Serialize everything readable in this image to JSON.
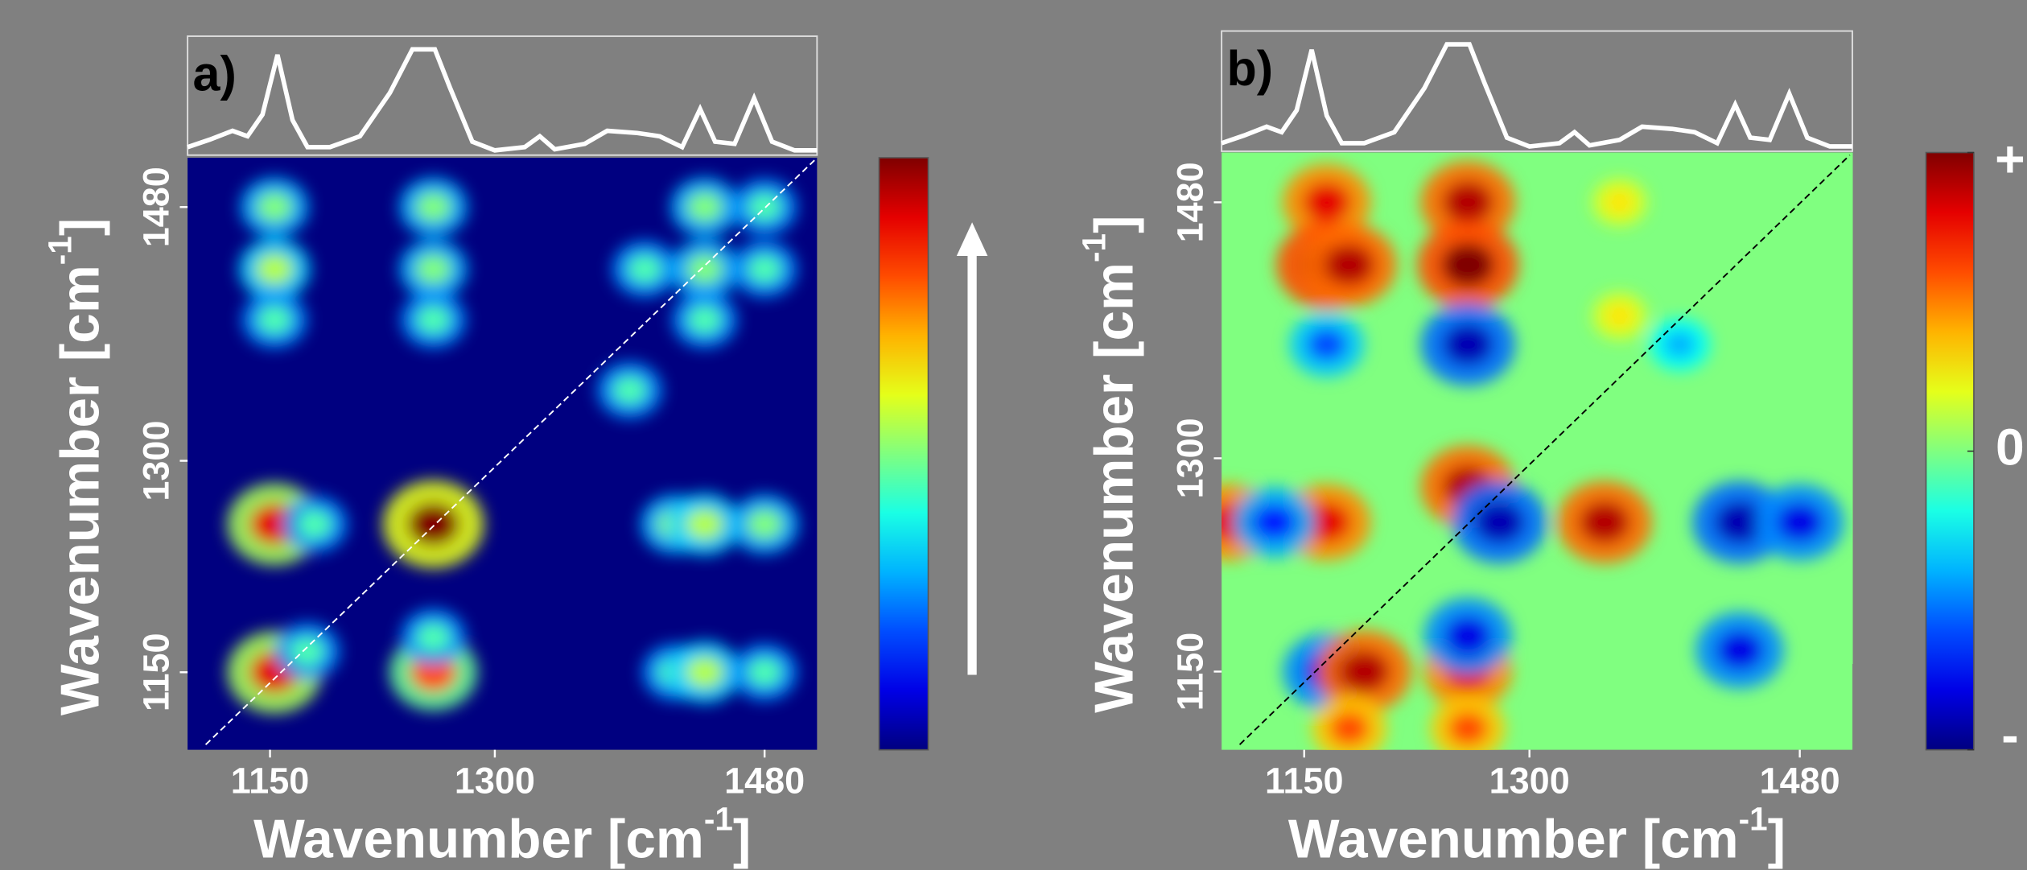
{
  "chart_data": [
    {
      "type": "heatmap",
      "panel_label": "a)",
      "x_label": {
        "text": "Wavenumber [cm",
        "sup": "-1",
        "end": "]"
      },
      "y_label": {
        "text": "Wavenumber [cm",
        "sup": "-1",
        "end": "]"
      },
      "xlim": [
        1095,
        1515
      ],
      "ylim": [
        1095,
        1515
      ],
      "xticks": [
        1150,
        1300,
        1480
      ],
      "yticks": [
        1150,
        1300,
        1480
      ],
      "clim": [
        0,
        1
      ],
      "colormap": "jet",
      "x": [
        1153,
        1259,
        1440,
        1480,
        1153,
        1259,
        1400,
        1440,
        1480,
        1153,
        1259,
        1440,
        1390,
        1153,
        1180,
        1259,
        1420,
        1440,
        1480,
        1153,
        1175,
        1259,
        1259,
        1420,
        1440,
        1480
      ],
      "y": [
        1480,
        1480,
        1480,
        1480,
        1436,
        1436,
        1436,
        1436,
        1436,
        1400,
        1400,
        1400,
        1350,
        1255,
        1255,
        1255,
        1255,
        1255,
        1255,
        1150,
        1165,
        1150,
        1175,
        1150,
        1150,
        1150
      ],
      "values": [
        0.5,
        0.5,
        0.5,
        0.45,
        0.55,
        0.5,
        0.45,
        0.5,
        0.45,
        0.45,
        0.45,
        0.45,
        0.45,
        0.9,
        0.45,
        1,
        0.5,
        0.55,
        0.5,
        0.9,
        0.45,
        0.8,
        0.45,
        0.45,
        0.55,
        0.45
      ],
      "spectrum": {
        "x": [
          1095,
          1110,
          1125,
          1135,
          1145,
          1155,
          1165,
          1175,
          1190,
          1210,
          1230,
          1245,
          1260,
          1270,
          1285,
          1300,
          1320,
          1330,
          1340,
          1360,
          1375,
          1395,
          1410,
          1425,
          1437,
          1447,
          1460,
          1473,
          1485,
          1500,
          1515
        ],
        "values": [
          0.05,
          0.12,
          0.2,
          0.15,
          0.35,
          0.9,
          0.3,
          0.05,
          0.05,
          0.15,
          0.55,
          0.95,
          0.95,
          0.6,
          0.1,
          0.02,
          0.05,
          0.15,
          0.03,
          0.08,
          0.2,
          0.18,
          0.15,
          0.05,
          0.4,
          0.1,
          0.08,
          0.5,
          0.1,
          0.02,
          0.02
        ]
      }
    },
    {
      "type": "heatmap",
      "panel_label": "b)",
      "x_label": {
        "text": "Wavenumber [cm",
        "sup": "-1",
        "end": "]"
      },
      "y_label": {
        "text": "Wavenumber [cm",
        "sup": "-1",
        "end": "]"
      },
      "xlim": [
        1095,
        1515
      ],
      "ylim": [
        1095,
        1515
      ],
      "xticks": [
        1150,
        1300,
        1480
      ],
      "yticks": [
        1150,
        1300,
        1480
      ],
      "clim": [
        -1,
        1
      ],
      "colormap": "jet",
      "colorbar_ticks": [
        {
          "value": 1,
          "label": "+"
        },
        {
          "value": 0,
          "label": "0"
        },
        {
          "value": -1,
          "label": "-"
        }
      ],
      "x": [
        1165,
        1259,
        1165,
        1180,
        1259,
        1360,
        1360,
        1259,
        1165,
        1400,
        1165,
        1259,
        1100,
        1130,
        1280,
        1350,
        1440,
        1480,
        1165,
        1190,
        1259,
        1259,
        1440,
        1259,
        1180
      ],
      "y": [
        1480,
        1480,
        1436,
        1436,
        1436,
        1480,
        1400,
        1380,
        1380,
        1380,
        1255,
        1280,
        1255,
        1255,
        1255,
        1255,
        1255,
        1255,
        1150,
        1150,
        1150,
        1175,
        1165,
        1110,
        1110
      ],
      "values": [
        0.8,
        0.9,
        1,
        0.9,
        1,
        0.3,
        0.3,
        -0.9,
        -0.6,
        -0.4,
        0.8,
        0.9,
        0.8,
        -0.7,
        -0.9,
        0.9,
        -0.9,
        -0.8,
        -0.8,
        0.9,
        0.8,
        -0.8,
        -0.8,
        0.6,
        0.6
      ],
      "spectrum": {
        "x": [
          1095,
          1110,
          1125,
          1135,
          1145,
          1155,
          1165,
          1175,
          1190,
          1210,
          1230,
          1245,
          1260,
          1270,
          1285,
          1300,
          1320,
          1330,
          1340,
          1360,
          1375,
          1395,
          1410,
          1425,
          1437,
          1447,
          1460,
          1473,
          1485,
          1500,
          1515
        ],
        "values": [
          0.05,
          0.12,
          0.2,
          0.15,
          0.35,
          0.9,
          0.3,
          0.05,
          0.05,
          0.15,
          0.55,
          0.95,
          0.95,
          0.6,
          0.1,
          0.02,
          0.05,
          0.15,
          0.03,
          0.08,
          0.2,
          0.18,
          0.15,
          0.05,
          0.4,
          0.1,
          0.08,
          0.5,
          0.1,
          0.02,
          0.02
        ]
      }
    }
  ]
}
